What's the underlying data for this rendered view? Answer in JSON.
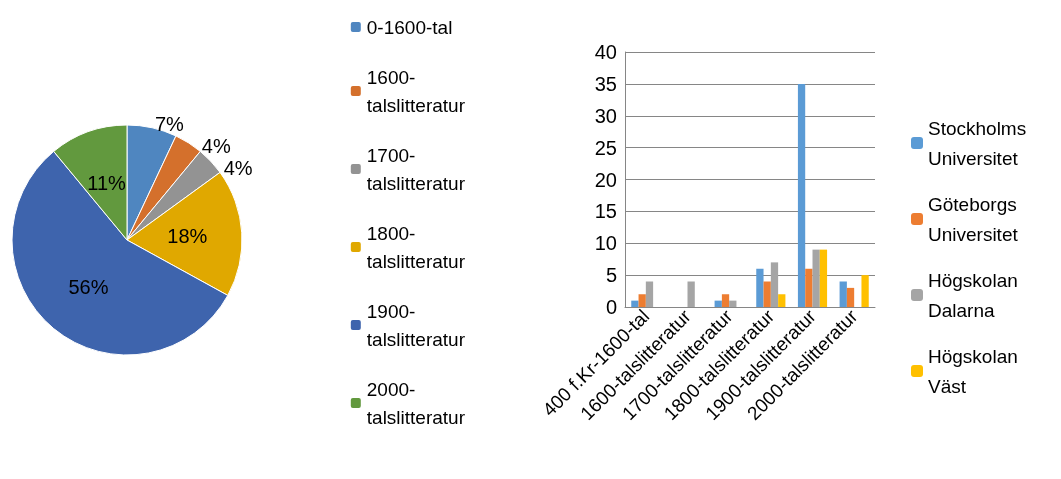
{
  "chart_data": [
    {
      "type": "pie",
      "categories": [
        "0-1600-tal",
        "1600-talslitteratur",
        "1700-talslitteratur",
        "1800-talslitteratur",
        "1900-talslitteratur",
        "2000-talslitteratur"
      ],
      "values": [
        7,
        4,
        4,
        18,
        56,
        11
      ],
      "value_labels": [
        "7%",
        "4%",
        "4%",
        "18%",
        "56%",
        "11%"
      ],
      "colors": [
        "#4f86c0",
        "#d4702c",
        "#939393",
        "#e0a800",
        "#3e64ad",
        "#62993e"
      ],
      "legend": "right"
    },
    {
      "type": "bar",
      "categories": [
        "400 f.Kr-1600-tal",
        "1600-talslitteratur",
        "1700-talslitteratur",
        "1800-talslitteratur",
        "1900-talslitteratur",
        "2000-talslitteratur"
      ],
      "series": [
        {
          "name": "Stockholms Universitet",
          "color": "#5b9bd5",
          "values": [
            1,
            0,
            1,
            6,
            35,
            4
          ]
        },
        {
          "name": "Göteborgs Universitet",
          "color": "#ed7d31",
          "values": [
            2,
            0,
            2,
            4,
            6,
            3
          ]
        },
        {
          "name": "Högskolan Dalarna",
          "color": "#a5a5a5",
          "values": [
            4,
            4,
            1,
            7,
            9,
            0
          ]
        },
        {
          "name": "Högskolan Väst",
          "color": "#ffc000",
          "values": [
            0,
            0,
            0,
            2,
            9,
            5
          ]
        }
      ],
      "ylim": [
        0,
        40
      ],
      "yticks": [
        0,
        5,
        10,
        15,
        20,
        25,
        30,
        35,
        40
      ],
      "grid": "y",
      "legend": "right"
    }
  ]
}
